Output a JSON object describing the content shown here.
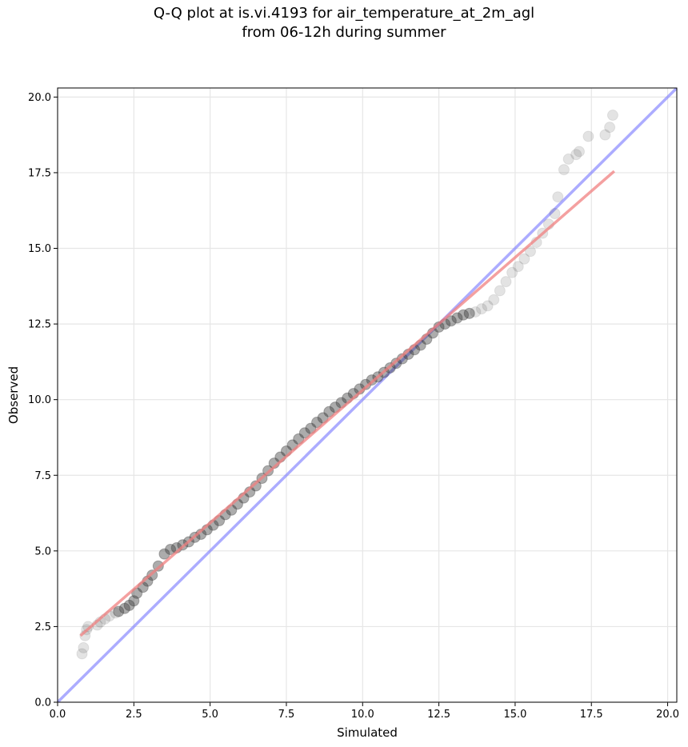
{
  "title_line1": "Q-Q plot at is.vi.4193 for air_temperature_at_2m_agl",
  "title_line2": "from 06-12h during summer",
  "colors": {
    "points": "#3a3a3a",
    "regression_line": "#f08080",
    "reference_line": "#8080ff",
    "grid": "#e6e6e6",
    "axes": "#000000"
  },
  "chart_data": {
    "type": "scatter",
    "xlabel": "Simulated",
    "ylabel": "Observed",
    "xlim": [
      0,
      20.3
    ],
    "ylim": [
      0,
      20.3
    ],
    "grid": true,
    "x_ticks": [
      "0.0",
      "2.5",
      "5.0",
      "7.5",
      "10.0",
      "12.5",
      "15.0",
      "17.5",
      "20.0"
    ],
    "y_ticks": [
      "0.0",
      "2.5",
      "5.0",
      "7.5",
      "10.0",
      "12.5",
      "15.0",
      "17.5",
      "20.0"
    ],
    "series": [
      {
        "kind": "quantiles",
        "x": [
          0.8,
          0.85,
          0.9,
          0.95,
          1.0,
          1.3,
          1.4,
          1.55,
          1.7,
          1.9,
          2.0,
          2.2,
          2.35,
          2.5,
          2.6,
          2.8,
          2.95,
          3.1,
          3.3,
          3.5,
          3.7,
          3.9,
          4.1,
          4.3,
          4.5,
          4.7,
          4.9,
          5.1,
          5.3,
          5.5,
          5.7,
          5.9,
          6.1,
          6.3,
          6.5,
          6.7,
          6.9,
          7.1,
          7.3,
          7.5,
          7.7,
          7.9,
          8.1,
          8.3,
          8.5,
          8.7,
          8.9,
          9.1,
          9.3,
          9.5,
          9.7,
          9.9,
          10.1,
          10.3,
          10.5,
          10.7,
          10.9,
          11.1,
          11.3,
          11.5,
          11.7,
          11.9,
          12.1,
          12.3,
          12.5,
          12.7,
          12.9,
          13.1,
          13.3,
          13.5,
          13.7,
          13.9,
          14.1,
          14.3,
          14.5,
          14.7,
          14.9,
          15.1,
          15.3,
          15.5,
          15.7,
          15.9,
          16.1,
          16.3,
          16.4,
          16.6,
          16.75,
          17.0,
          17.1,
          17.4,
          17.95,
          18.1,
          18.2
        ],
        "y": [
          1.6,
          1.8,
          2.2,
          2.4,
          2.5,
          2.55,
          2.65,
          2.75,
          2.85,
          2.95,
          3.0,
          3.1,
          3.2,
          3.35,
          3.6,
          3.8,
          4.0,
          4.2,
          4.5,
          4.9,
          5.05,
          5.1,
          5.2,
          5.3,
          5.45,
          5.55,
          5.7,
          5.85,
          6.0,
          6.2,
          6.35,
          6.55,
          6.75,
          6.95,
          7.15,
          7.4,
          7.65,
          7.9,
          8.1,
          8.3,
          8.5,
          8.7,
          8.9,
          9.05,
          9.25,
          9.4,
          9.6,
          9.75,
          9.9,
          10.05,
          10.2,
          10.35,
          10.5,
          10.65,
          10.75,
          10.9,
          11.05,
          11.2,
          11.35,
          11.5,
          11.65,
          11.8,
          12.0,
          12.2,
          12.4,
          12.5,
          12.6,
          12.7,
          12.8,
          12.85,
          12.9,
          13.0,
          13.1,
          13.3,
          13.6,
          13.9,
          14.2,
          14.4,
          14.65,
          14.9,
          15.2,
          15.5,
          15.8,
          16.15,
          16.7,
          17.6,
          17.95,
          18.1,
          18.2,
          18.7,
          18.75,
          19.0,
          19.4
        ]
      },
      {
        "kind": "regression",
        "x": [
          0.75,
          18.25
        ],
        "y": [
          2.2,
          17.55
        ]
      },
      {
        "kind": "reference_1to1",
        "x": [
          0.0,
          20.3
        ],
        "y": [
          0.0,
          20.3
        ]
      }
    ]
  }
}
